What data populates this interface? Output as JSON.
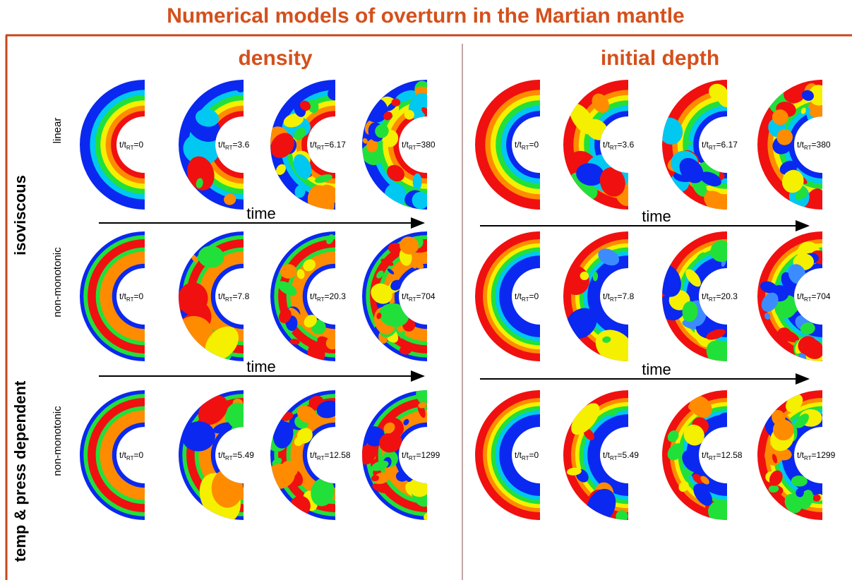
{
  "title": "Numerical models of overturn in the Martian mantle",
  "columns": [
    "density",
    "initial depth"
  ],
  "groups": [
    "isoviscous",
    "temp & press dependent"
  ],
  "time_symbol": {
    "main": "t/t",
    "sub": "RT"
  },
  "arrow_label": "time",
  "rows": [
    {
      "label": "linear",
      "times": [
        "=0",
        "=3.6",
        "=6.17",
        "=380"
      ]
    },
    {
      "label": "non-monotonic",
      "times": [
        "=0",
        "=7.8",
        "=20.3",
        "=704"
      ]
    },
    {
      "label": "non-monotonic",
      "times": [
        "=0",
        "=5.49",
        "=12.58",
        "=1299"
      ]
    }
  ]
}
